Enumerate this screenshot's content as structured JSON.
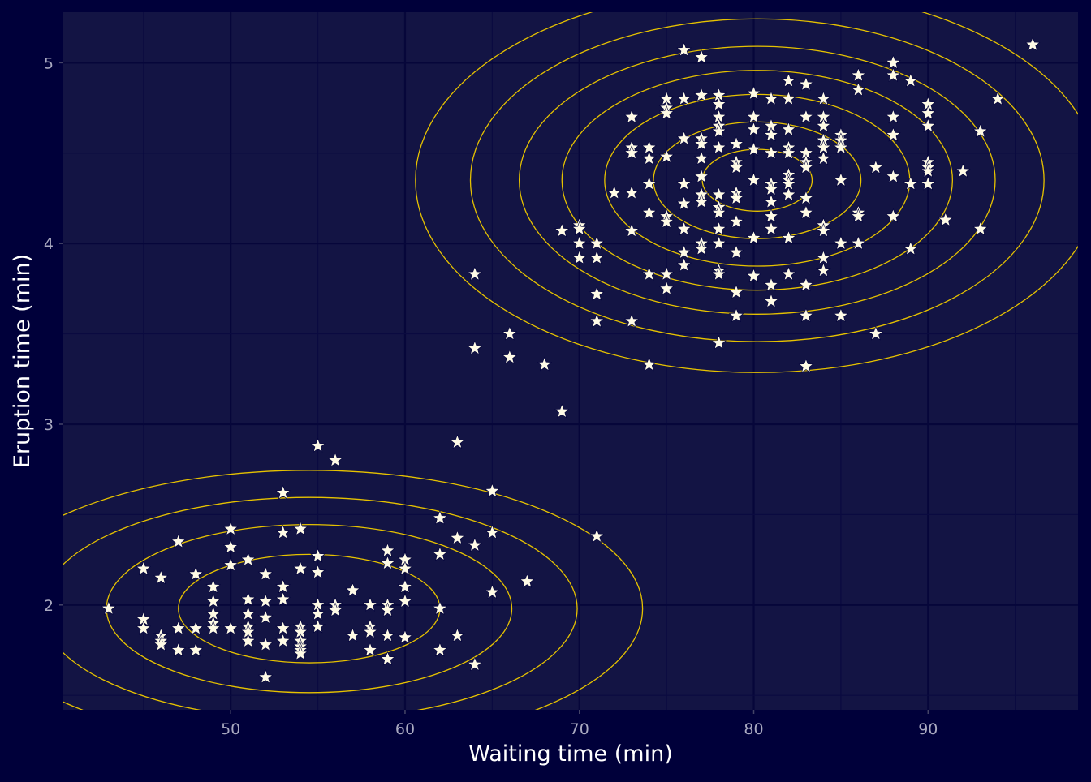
{
  "colors": {
    "background": "#00003a",
    "panel": "#131444",
    "grid": "#06063a",
    "points": "#fffbe6",
    "contours": "#e6c200",
    "tick_text": "#a9a9c0",
    "title_text": "#ffffff"
  },
  "chart_data": {
    "type": "scatter",
    "title": "",
    "xlabel": "Waiting time (min)",
    "ylabel": "Eruption time (min)",
    "xlim": [
      40.4,
      98.6
    ],
    "ylim": [
      1.42,
      5.28
    ],
    "xticks": [
      50,
      60,
      70,
      80,
      90
    ],
    "yticks": [
      2,
      3,
      4,
      5
    ],
    "xtick_labels": [
      "50",
      "60",
      "70",
      "80",
      "90"
    ],
    "ytick_labels": [
      "2",
      "3",
      "4",
      "5"
    ],
    "grid": true,
    "legend": "none",
    "marker": "star",
    "overlay": "2d density contours",
    "contour_clusters": [
      {
        "center": [
          54.5,
          1.98
        ],
        "spread": [
          7.5,
          0.3
        ],
        "levels": [
          1.0,
          1.55,
          2.05,
          2.55
        ]
      },
      {
        "center": [
          80.2,
          4.35
        ],
        "spread": [
          7.0,
          0.38
        ],
        "levels": [
          0.45,
          0.85,
          1.25,
          1.6,
          1.95,
          2.35,
          2.8
        ]
      }
    ],
    "points": [
      [
        43,
        1.98
      ],
      [
        45,
        2.2
      ],
      [
        45,
        1.92
      ],
      [
        45,
        1.87
      ],
      [
        46,
        2.15
      ],
      [
        46,
        1.83
      ],
      [
        46,
        1.8
      ],
      [
        46,
        1.78
      ],
      [
        47,
        2.35
      ],
      [
        47,
        1.87
      ],
      [
        47,
        1.75
      ],
      [
        48,
        2.17
      ],
      [
        48,
        1.87
      ],
      [
        48,
        1.75
      ],
      [
        49,
        2.1
      ],
      [
        49,
        2.02
      ],
      [
        49,
        1.95
      ],
      [
        49,
        1.9
      ],
      [
        49,
        1.87
      ],
      [
        50,
        2.42
      ],
      [
        50,
        2.32
      ],
      [
        50,
        2.22
      ],
      [
        50,
        1.87
      ],
      [
        51,
        2.25
      ],
      [
        51,
        2.03
      ],
      [
        51,
        1.95
      ],
      [
        51,
        1.88
      ],
      [
        51,
        1.85
      ],
      [
        51,
        1.8
      ],
      [
        52,
        2.17
      ],
      [
        52,
        2.02
      ],
      [
        52,
        1.93
      ],
      [
        52,
        1.78
      ],
      [
        52,
        1.6
      ],
      [
        53,
        2.62
      ],
      [
        53,
        2.4
      ],
      [
        53,
        2.1
      ],
      [
        53,
        2.03
      ],
      [
        53,
        1.87
      ],
      [
        53,
        1.8
      ],
      [
        54,
        2.42
      ],
      [
        54,
        2.2
      ],
      [
        54,
        1.88
      ],
      [
        54,
        1.85
      ],
      [
        54,
        1.8
      ],
      [
        54,
        1.77
      ],
      [
        54,
        1.75
      ],
      [
        54,
        1.73
      ],
      [
        55,
        2.88
      ],
      [
        55,
        2.27
      ],
      [
        55,
        2.18
      ],
      [
        55,
        2.0
      ],
      [
        55,
        1.95
      ],
      [
        55,
        1.88
      ],
      [
        56,
        2.8
      ],
      [
        56,
        2.0
      ],
      [
        56,
        1.97
      ],
      [
        57,
        2.08
      ],
      [
        57,
        1.83
      ],
      [
        58,
        2.0
      ],
      [
        58,
        1.88
      ],
      [
        58,
        1.85
      ],
      [
        58,
        1.75
      ],
      [
        59,
        2.3
      ],
      [
        59,
        2.23
      ],
      [
        59,
        2.0
      ],
      [
        59,
        1.97
      ],
      [
        59,
        1.83
      ],
      [
        59,
        1.7
      ],
      [
        60,
        2.25
      ],
      [
        60,
        2.2
      ],
      [
        60,
        2.1
      ],
      [
        60,
        2.02
      ],
      [
        60,
        1.82
      ],
      [
        62,
        2.48
      ],
      [
        62,
        2.28
      ],
      [
        62,
        1.98
      ],
      [
        62,
        1.75
      ],
      [
        63,
        2.9
      ],
      [
        63,
        2.37
      ],
      [
        63,
        1.83
      ],
      [
        64,
        3.83
      ],
      [
        64,
        3.42
      ],
      [
        64,
        2.33
      ],
      [
        64,
        1.67
      ],
      [
        65,
        2.63
      ],
      [
        65,
        2.4
      ],
      [
        65,
        2.07
      ],
      [
        66,
        3.5
      ],
      [
        66,
        3.37
      ],
      [
        67,
        2.13
      ],
      [
        68,
        3.33
      ],
      [
        69,
        4.07
      ],
      [
        69,
        3.07
      ],
      [
        70,
        4.1
      ],
      [
        70,
        4.08
      ],
      [
        70,
        4.0
      ],
      [
        70,
        3.92
      ],
      [
        71,
        4.0
      ],
      [
        71,
        3.92
      ],
      [
        71,
        3.72
      ],
      [
        71,
        3.57
      ],
      [
        71,
        2.38
      ],
      [
        72,
        4.28
      ],
      [
        73,
        4.7
      ],
      [
        73,
        4.53
      ],
      [
        73,
        4.5
      ],
      [
        73,
        4.28
      ],
      [
        73,
        4.07
      ],
      [
        73,
        3.57
      ],
      [
        74,
        4.53
      ],
      [
        74,
        4.47
      ],
      [
        74,
        4.33
      ],
      [
        74,
        4.17
      ],
      [
        74,
        3.83
      ],
      [
        74,
        3.33
      ],
      [
        75,
        4.8
      ],
      [
        75,
        4.75
      ],
      [
        75,
        4.72
      ],
      [
        75,
        4.48
      ],
      [
        75,
        4.15
      ],
      [
        75,
        4.12
      ],
      [
        75,
        3.83
      ],
      [
        75,
        3.75
      ],
      [
        76,
        5.07
      ],
      [
        76,
        4.8
      ],
      [
        76,
        4.58
      ],
      [
        76,
        4.33
      ],
      [
        76,
        4.22
      ],
      [
        76,
        4.08
      ],
      [
        76,
        3.95
      ],
      [
        76,
        3.88
      ],
      [
        77,
        5.03
      ],
      [
        77,
        4.82
      ],
      [
        77,
        4.58
      ],
      [
        77,
        4.55
      ],
      [
        77,
        4.47
      ],
      [
        77,
        4.37
      ],
      [
        77,
        4.27
      ],
      [
        77,
        4.23
      ],
      [
        77,
        4.0
      ],
      [
        77,
        3.97
      ],
      [
        78,
        4.82
      ],
      [
        78,
        4.77
      ],
      [
        78,
        4.7
      ],
      [
        78,
        4.65
      ],
      [
        78,
        4.62
      ],
      [
        78,
        4.53
      ],
      [
        78,
        4.27
      ],
      [
        78,
        4.2
      ],
      [
        78,
        4.17
      ],
      [
        78,
        4.08
      ],
      [
        78,
        4.0
      ],
      [
        78,
        3.85
      ],
      [
        78,
        3.83
      ],
      [
        78,
        3.45
      ],
      [
        79,
        4.55
      ],
      [
        79,
        4.45
      ],
      [
        79,
        4.42
      ],
      [
        79,
        4.28
      ],
      [
        79,
        4.25
      ],
      [
        79,
        4.12
      ],
      [
        79,
        3.95
      ],
      [
        79,
        3.73
      ],
      [
        79,
        3.6
      ],
      [
        80,
        4.83
      ],
      [
        80,
        4.7
      ],
      [
        80,
        4.63
      ],
      [
        80,
        4.52
      ],
      [
        80,
        4.35
      ],
      [
        80,
        4.03
      ],
      [
        80,
        3.82
      ],
      [
        81,
        4.8
      ],
      [
        81,
        4.65
      ],
      [
        81,
        4.6
      ],
      [
        81,
        4.5
      ],
      [
        81,
        4.33
      ],
      [
        81,
        4.3
      ],
      [
        81,
        4.23
      ],
      [
        81,
        4.15
      ],
      [
        81,
        4.08
      ],
      [
        81,
        3.77
      ],
      [
        81,
        3.68
      ],
      [
        82,
        4.9
      ],
      [
        82,
        4.8
      ],
      [
        82,
        4.63
      ],
      [
        82,
        4.53
      ],
      [
        82,
        4.5
      ],
      [
        82,
        4.38
      ],
      [
        82,
        4.35
      ],
      [
        82,
        4.33
      ],
      [
        82,
        4.27
      ],
      [
        82,
        4.03
      ],
      [
        82,
        3.83
      ],
      [
        83,
        4.88
      ],
      [
        83,
        4.7
      ],
      [
        83,
        4.5
      ],
      [
        83,
        4.45
      ],
      [
        83,
        4.42
      ],
      [
        83,
        4.25
      ],
      [
        83,
        4.17
      ],
      [
        83,
        3.77
      ],
      [
        83,
        3.6
      ],
      [
        83,
        3.32
      ],
      [
        84,
        4.8
      ],
      [
        84,
        4.7
      ],
      [
        84,
        4.65
      ],
      [
        84,
        4.57
      ],
      [
        84,
        4.53
      ],
      [
        84,
        4.47
      ],
      [
        84,
        4.1
      ],
      [
        84,
        4.07
      ],
      [
        84,
        3.92
      ],
      [
        84,
        3.85
      ],
      [
        85,
        4.6
      ],
      [
        85,
        4.57
      ],
      [
        85,
        4.53
      ],
      [
        85,
        4.35
      ],
      [
        85,
        4.0
      ],
      [
        85,
        3.6
      ],
      [
        86,
        4.93
      ],
      [
        86,
        4.85
      ],
      [
        86,
        4.17
      ],
      [
        86,
        4.15
      ],
      [
        86,
        4.0
      ],
      [
        87,
        4.42
      ],
      [
        87,
        3.5
      ],
      [
        88,
        5.0
      ],
      [
        88,
        4.93
      ],
      [
        88,
        4.7
      ],
      [
        88,
        4.6
      ],
      [
        88,
        4.37
      ],
      [
        88,
        4.15
      ],
      [
        89,
        4.9
      ],
      [
        89,
        4.33
      ],
      [
        89,
        3.97
      ],
      [
        90,
        4.77
      ],
      [
        90,
        4.72
      ],
      [
        90,
        4.65
      ],
      [
        90,
        4.45
      ],
      [
        90,
        4.42
      ],
      [
        90,
        4.4
      ],
      [
        90,
        4.33
      ],
      [
        91,
        4.13
      ],
      [
        92,
        4.4
      ],
      [
        93,
        4.62
      ],
      [
        93,
        4.08
      ],
      [
        94,
        4.8
      ],
      [
        96,
        5.1
      ]
    ]
  }
}
